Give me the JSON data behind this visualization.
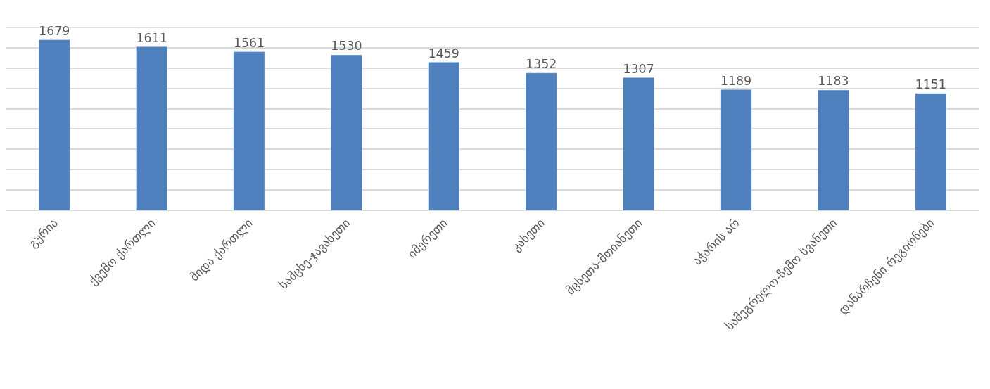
{
  "chart_data": {
    "type": "bar",
    "categories": [
      "გურია",
      "ქვემო ქართლი",
      "შიდა ქართლი",
      "სამცხე-ჯავახეთი",
      "იმერეთი",
      "კახეთი",
      "მცხეთა-მთიანეთი",
      "აჭარის არ",
      "სამეგრელო-ზემო სვანეთი",
      "დანარჩენი რეგიონები"
    ],
    "values": [
      1679,
      1611,
      1561,
      1530,
      1459,
      1352,
      1307,
      1189,
      1183,
      1151
    ],
    "color": "#4e80bd",
    "data_labels": true,
    "ylim": [
      0,
      1800
    ],
    "yticks": [
      {
        "value": 0,
        "label": null
      },
      {
        "value": 200,
        "label": null
      },
      {
        "value": 400,
        "label": null
      },
      {
        "value": 600,
        "label": null
      },
      {
        "value": 800,
        "label": null
      },
      {
        "value": 1000,
        "label": null
      },
      {
        "value": 1200,
        "label": null
      },
      {
        "value": 1400,
        "label": null
      },
      {
        "value": 1600,
        "label": null
      },
      {
        "value": 1800,
        "label": null
      }
    ],
    "tick_labels": "x",
    "grid": "y"
  }
}
